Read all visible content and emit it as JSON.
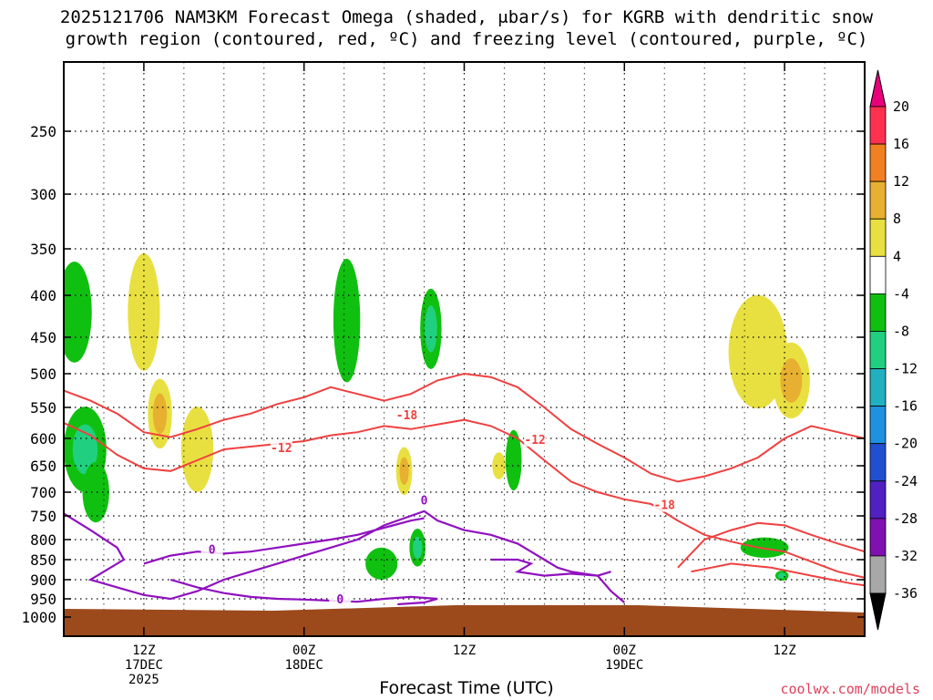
{
  "header": {
    "title_line1": "2025121706 NAM3KM Forecast Omega (shaded, μbar/s) for KGRB with dendritic snow",
    "title_line2": "growth region (contoured, red, ºC) and freezing level (contoured, purple, ºC)"
  },
  "footer": {
    "credit": "coolwx.com/models"
  },
  "chart_data": {
    "type": "heatmap",
    "title": "2025121706 NAM3KM Forecast Omega (shaded, μbar/s) for KGRB with dendritic snow growth region (contoured, red, ºC) and freezing level (contoured, purple, ºC)",
    "xlabel": "Forecast Time (UTC)",
    "ylabel": "",
    "y_unit": "hPa",
    "y_ticks": [
      250,
      300,
      350,
      400,
      450,
      500,
      550,
      600,
      650,
      700,
      750,
      800,
      850,
      900,
      950,
      1000
    ],
    "y_labels": [
      "250",
      "300",
      "350",
      "400",
      "450",
      "500",
      "550",
      "600",
      "650",
      "700",
      "750",
      "800",
      "850",
      "900",
      "950",
      "1000"
    ],
    "x_ticks": [
      {
        "hour": 6,
        "line1": "12Z",
        "line2": "17DEC",
        "line3": "2025"
      },
      {
        "hour": 18,
        "line1": "00Z",
        "line2": "18DEC",
        "line3": ""
      },
      {
        "hour": 30,
        "line1": "12Z",
        "line2": "",
        "line3": ""
      },
      {
        "hour": 42,
        "line1": "00Z",
        "line2": "19DEC",
        "line3": ""
      },
      {
        "hour": 54,
        "line1": "12Z",
        "line2": "",
        "line3": ""
      }
    ],
    "xlim_hours": [
      0,
      60
    ],
    "grid": true,
    "colorbar": {
      "unit": "μbar/s",
      "levels": [
        20,
        16,
        12,
        8,
        4,
        -4,
        -8,
        -12,
        -16,
        -20,
        -24,
        -28,
        -32,
        -36
      ],
      "labels": [
        "20",
        "16",
        "12",
        "8",
        "4",
        "-4",
        "-8",
        "-12",
        "-16",
        "-20",
        "-24",
        "-28",
        "-32",
        "-36"
      ],
      "colors": [
        "#ff3050",
        "#f08020",
        "#e8b030",
        "#e8e040",
        "#ffffff",
        "#10c010",
        "#20d080",
        "#20b0c0",
        "#2090e0",
        "#2050d0",
        "#5020c0",
        "#8010b0",
        "#a8a8a8"
      ],
      "over_color": "#e8007a",
      "under_color": "#000000"
    },
    "contours": [
      {
        "name": "red",
        "color": "#f04040",
        "labels": [
          "-18",
          "-12",
          "-12",
          "-18"
        ]
      },
      {
        "name": "purple",
        "color": "#9010c0",
        "labels": [
          "0",
          "0",
          "0"
        ]
      }
    ],
    "omega_regions": [
      {
        "t": 0.8,
        "p": 420,
        "dt": 1.3,
        "dp": 120,
        "v": -5
      },
      {
        "t": 1.6,
        "p": 620,
        "dt": 1.6,
        "dp": 150,
        "v": -10
      },
      {
        "t": 2.4,
        "p": 700,
        "dt": 1.0,
        "dp": 120,
        "v": -6
      },
      {
        "t": 6.0,
        "p": 420,
        "dt": 1.2,
        "dp": 140,
        "v": 6
      },
      {
        "t": 7.2,
        "p": 560,
        "dt": 0.9,
        "dp": 110,
        "v": 9
      },
      {
        "t": 10.0,
        "p": 620,
        "dt": 1.2,
        "dp": 150,
        "v": 7
      },
      {
        "t": 21.2,
        "p": 430,
        "dt": 1.0,
        "dp": 150,
        "v": -6
      },
      {
        "t": 27.5,
        "p": 440,
        "dt": 0.8,
        "dp": 100,
        "v": -12
      },
      {
        "t": 25.5,
        "p": 660,
        "dt": 0.6,
        "dp": 90,
        "v": 10
      },
      {
        "t": 26.5,
        "p": 820,
        "dt": 0.6,
        "dp": 90,
        "v": -12
      },
      {
        "t": 23.8,
        "p": 860,
        "dt": 1.2,
        "dp": 80,
        "v": -7
      },
      {
        "t": 33.7,
        "p": 640,
        "dt": 0.6,
        "dp": 110,
        "v": -6
      },
      {
        "t": 32.6,
        "p": 650,
        "dt": 0.5,
        "dp": 50,
        "v": 8
      },
      {
        "t": 52.0,
        "p": 470,
        "dt": 2.2,
        "dp": 150,
        "v": 6
      },
      {
        "t": 54.5,
        "p": 510,
        "dt": 1.4,
        "dp": 110,
        "v": 9
      },
      {
        "t": 52.5,
        "p": 820,
        "dt": 1.8,
        "dp": 50,
        "v": -6
      },
      {
        "t": 53.8,
        "p": 890,
        "dt": 0.5,
        "dp": 25,
        "v": -12
      }
    ],
    "terrain_color": "#9c4a1c"
  }
}
